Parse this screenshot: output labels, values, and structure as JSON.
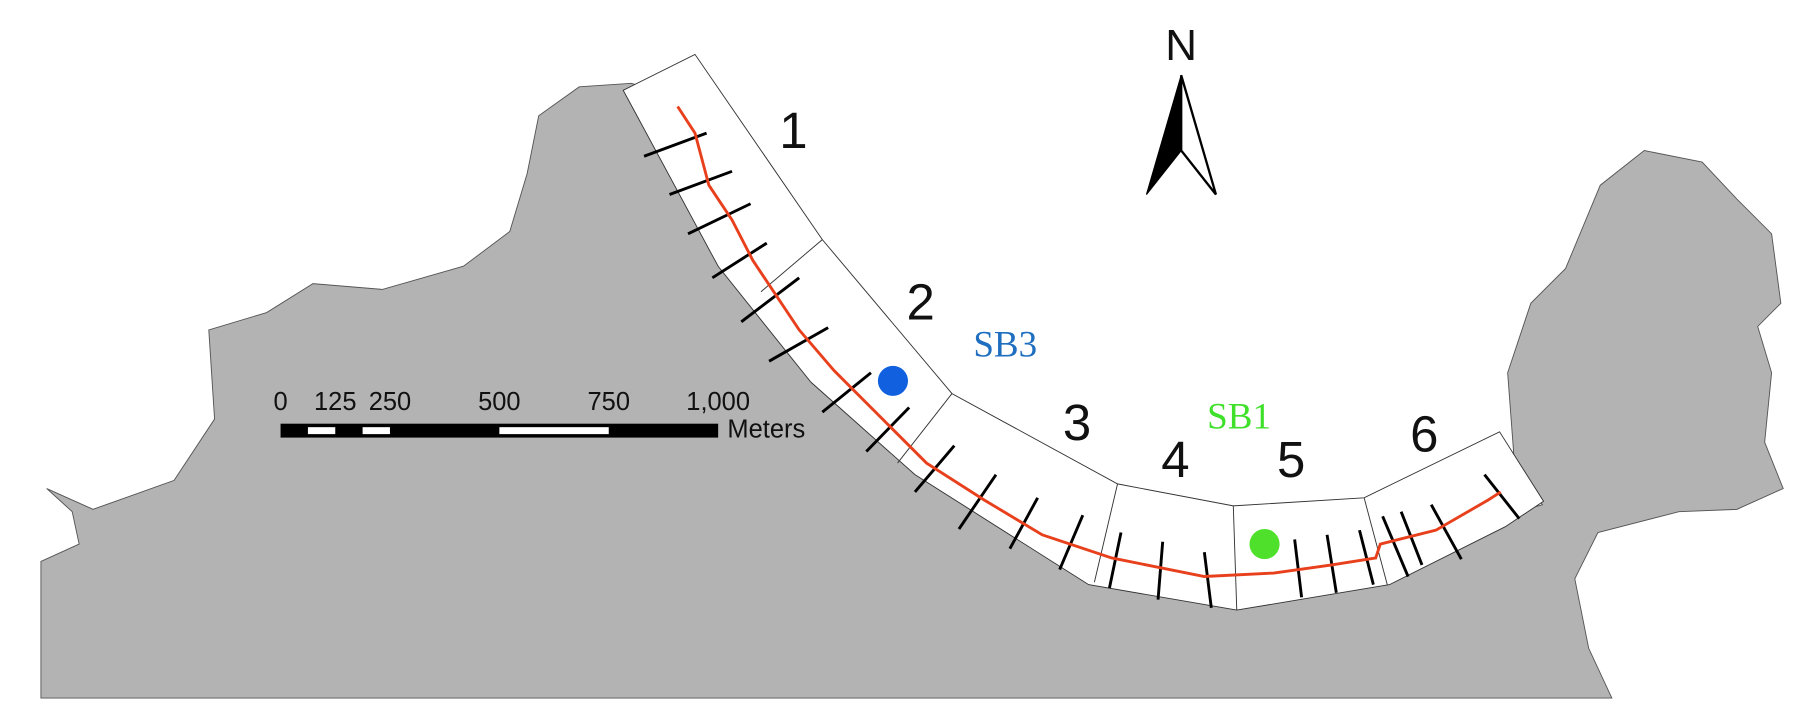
{
  "north_arrow": {
    "label": "N"
  },
  "zones": [
    {
      "label": "1"
    },
    {
      "label": "2"
    },
    {
      "label": "3"
    },
    {
      "label": "4"
    },
    {
      "label": "5"
    },
    {
      "label": "6"
    }
  ],
  "stations": [
    {
      "label": "SB3",
      "color": "#1f6fc0"
    },
    {
      "label": "SB1",
      "color": "#3fe02a"
    }
  ],
  "scale_bar": {
    "ticks": [
      0,
      125,
      250,
      500,
      750,
      {
        "value": 1000,
        "label": "1,000"
      }
    ],
    "unit": "Meters"
  }
}
